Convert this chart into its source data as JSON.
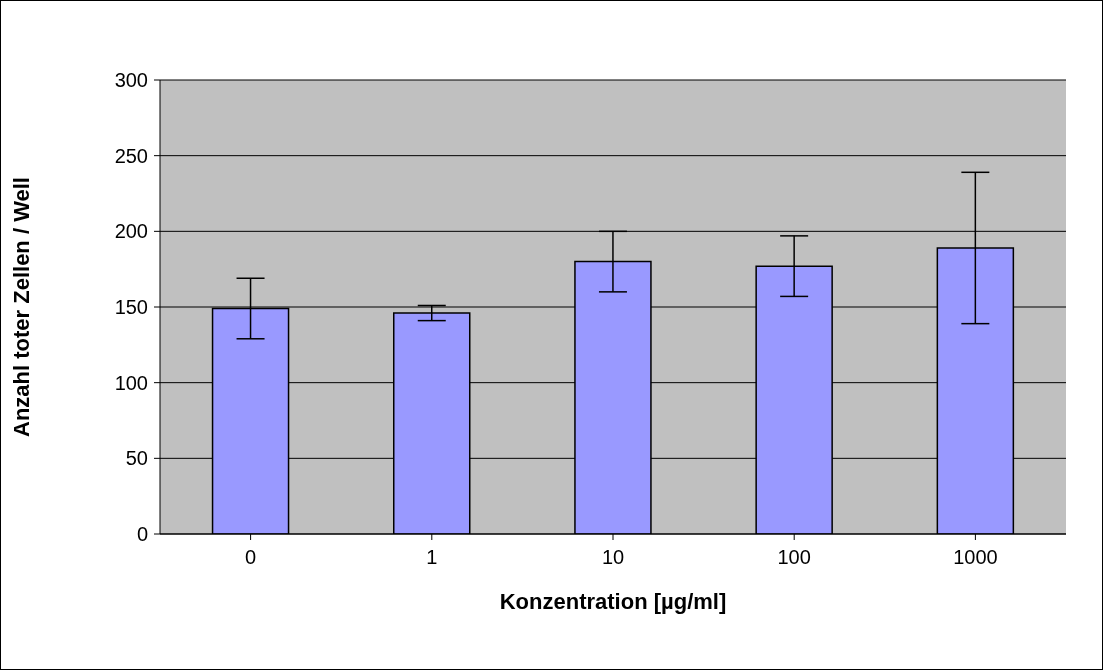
{
  "chart_data": {
    "type": "bar",
    "xlabel": "Konzentration [µg/ml]",
    "ylabel": "Anzahl toter Zellen / Well",
    "categories": [
      "0",
      "1",
      "10",
      "100",
      "1000"
    ],
    "values": [
      149,
      146,
      180,
      177,
      189
    ],
    "errors": [
      20,
      5,
      20,
      20,
      50
    ],
    "color": "#9999ff",
    "ylim": [
      0,
      300
    ],
    "yticks": [
      0,
      50,
      100,
      150,
      200,
      250,
      300
    ],
    "grid": "y"
  }
}
